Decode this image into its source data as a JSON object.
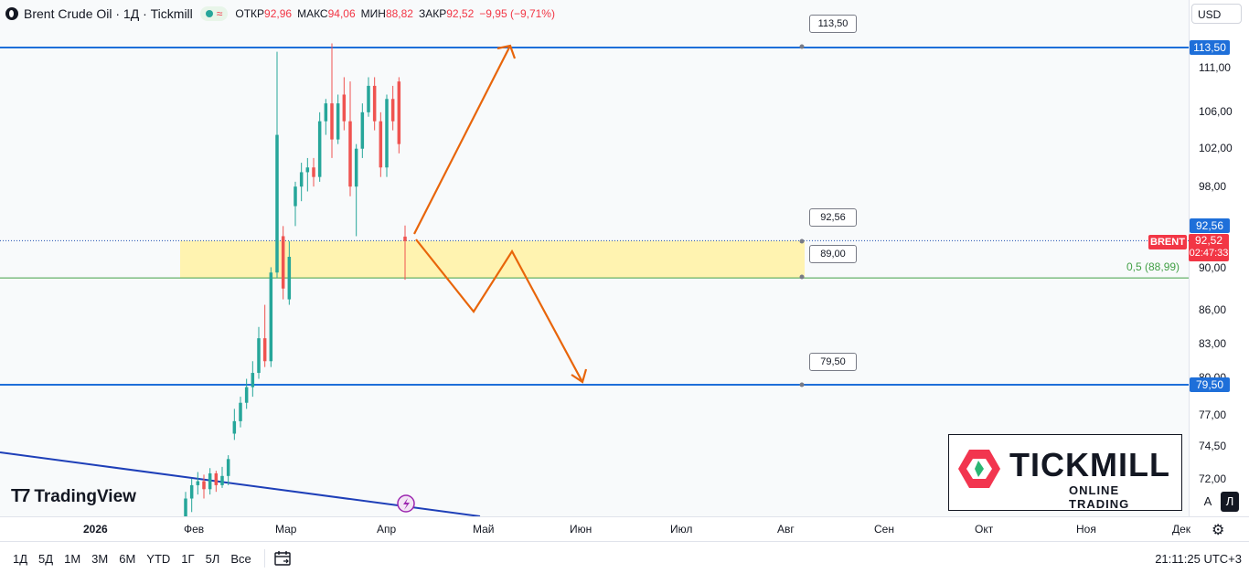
{
  "header": {
    "symbol_title": "Brent Crude Oil · 1Д · Tickmill",
    "open_label": "ОТКР",
    "open_value": "92,96",
    "high_label": "МАКС",
    "high_value": "94,06",
    "low_label": "МИН",
    "low_value": "88,82",
    "close_label": "ЗАКР",
    "close_value": "92,52",
    "change": "−9,95 (−9,71%)"
  },
  "currency": "USD",
  "branding": {
    "tradingview": "TradingView",
    "broker_name": "TICKMILL",
    "broker_sub": "ONLINE TRADING"
  },
  "price_axis": {
    "ticks": [
      "111,00",
      "106,00",
      "102,00",
      "98,00",
      "90,00",
      "86,00",
      "83,00",
      "80,00",
      "77,00",
      "74,50",
      "72,00"
    ],
    "label_top": "113,50",
    "label_mid": "92,56",
    "label_low": "79,50",
    "last_price": "92,52",
    "countdown": "02:47:33",
    "symbol_tag": "BRENT"
  },
  "annotations": [
    "113,50",
    "92,56",
    "89,00",
    "79,50"
  ],
  "fib_label": "0,5 (88,99)",
  "colors": {
    "up": "#26a69a",
    "down": "#ef5350",
    "level_line": "#1e6fd9",
    "zone": "#fff3b0",
    "arrow": "#e8650a",
    "trend": "#1e3fb8",
    "fib": "#43a047",
    "price_line": "#f23645"
  },
  "time_axis": {
    "labels": [
      "2026",
      "Фев",
      "Мар",
      "Апр",
      "Май",
      "Июн",
      "Июл",
      "Авг",
      "Сен",
      "Окт",
      "Ноя",
      "Дек"
    ]
  },
  "bottom_bar": {
    "ranges": [
      "1Д",
      "5Д",
      "1М",
      "3М",
      "6М",
      "YTD",
      "1Г",
      "5Л",
      "Все"
    ],
    "clock": "21:11:25 UTC+3"
  },
  "scale_buttons": {
    "auto": "A",
    "log": "Л"
  },
  "chart_data": {
    "type": "candlestick",
    "levels": [
      113.5,
      92.56,
      88.99,
      79.5
    ],
    "zone": [
      89.0,
      92.56
    ],
    "candles": [
      {
        "o": 69.0,
        "h": 71.0,
        "l": 66.0,
        "c": 70.5
      },
      {
        "o": 70.5,
        "h": 72.0,
        "l": 69.5,
        "c": 71.5
      },
      {
        "o": 71.5,
        "h": 72.5,
        "l": 70.8,
        "c": 71.8
      },
      {
        "o": 71.8,
        "h": 72.3,
        "l": 70.5,
        "c": 71.2
      },
      {
        "o": 71.2,
        "h": 72.8,
        "l": 70.8,
        "c": 72.4
      },
      {
        "o": 72.4,
        "h": 72.6,
        "l": 71.0,
        "c": 71.5
      },
      {
        "o": 71.5,
        "h": 72.9,
        "l": 71.3,
        "c": 72.2
      },
      {
        "o": 72.2,
        "h": 73.8,
        "l": 71.5,
        "c": 73.5
      },
      {
        "o": 75.5,
        "h": 77.5,
        "l": 75.0,
        "c": 76.5
      },
      {
        "o": 76.5,
        "h": 78.5,
        "l": 76.0,
        "c": 78.0
      },
      {
        "o": 78.0,
        "h": 80.0,
        "l": 77.5,
        "c": 79.3
      },
      {
        "o": 79.3,
        "h": 81.5,
        "l": 78.5,
        "c": 80.5
      },
      {
        "o": 80.5,
        "h": 84.5,
        "l": 80.0,
        "c": 83.5
      },
      {
        "o": 83.5,
        "h": 86.5,
        "l": 81.0,
        "c": 81.5
      },
      {
        "o": 81.5,
        "h": 90.0,
        "l": 81.0,
        "c": 89.5
      },
      {
        "o": 89.5,
        "h": 113.0,
        "l": 89.0,
        "c": 103.5
      },
      {
        "o": 93.0,
        "h": 94.0,
        "l": 87.0,
        "c": 88.0
      },
      {
        "o": 87.0,
        "h": 92.5,
        "l": 86.5,
        "c": 91.0
      },
      {
        "o": 96.0,
        "h": 98.5,
        "l": 94.0,
        "c": 98.0
      },
      {
        "o": 98.0,
        "h": 100.5,
        "l": 96.5,
        "c": 99.5
      },
      {
        "o": 99.5,
        "h": 101.0,
        "l": 97.5,
        "c": 100.0
      },
      {
        "o": 100.0,
        "h": 101.0,
        "l": 98.0,
        "c": 99.0
      },
      {
        "o": 99.0,
        "h": 106.0,
        "l": 98.5,
        "c": 105.0
      },
      {
        "o": 105.0,
        "h": 107.5,
        "l": 103.5,
        "c": 107.0
      },
      {
        "o": 107.0,
        "h": 114.0,
        "l": 101.0,
        "c": 103.0
      },
      {
        "o": 103.0,
        "h": 108.0,
        "l": 102.5,
        "c": 107.0
      },
      {
        "o": 108.0,
        "h": 110.0,
        "l": 104.0,
        "c": 105.0
      },
      {
        "o": 105.0,
        "h": 109.5,
        "l": 97.0,
        "c": 98.0
      },
      {
        "o": 98.0,
        "h": 102.5,
        "l": 93.0,
        "c": 102.0
      },
      {
        "o": 102.0,
        "h": 107.0,
        "l": 101.0,
        "c": 106.0
      },
      {
        "o": 106.0,
        "h": 110.0,
        "l": 105.5,
        "c": 109.0
      },
      {
        "o": 109.0,
        "h": 110.0,
        "l": 104.0,
        "c": 105.0
      },
      {
        "o": 105.0,
        "h": 106.0,
        "l": 99.0,
        "c": 100.0
      },
      {
        "o": 100.0,
        "h": 108.0,
        "l": 99.0,
        "c": 107.5
      },
      {
        "o": 107.5,
        "h": 109.0,
        "l": 104.0,
        "c": 105.0
      },
      {
        "o": 109.5,
        "h": 110.0,
        "l": 101.5,
        "c": 102.5
      },
      {
        "o": 92.96,
        "h": 94.06,
        "l": 88.82,
        "c": 92.52
      }
    ]
  }
}
